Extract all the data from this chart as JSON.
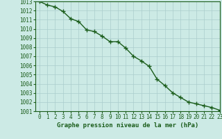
{
  "x": [
    0,
    1,
    2,
    3,
    4,
    5,
    6,
    7,
    8,
    9,
    10,
    11,
    12,
    13,
    14,
    15,
    16,
    17,
    18,
    19,
    20,
    21,
    22,
    23
  ],
  "y": [
    1013.0,
    1012.6,
    1012.4,
    1011.9,
    1011.1,
    1010.8,
    1009.9,
    1009.7,
    1009.2,
    1008.6,
    1008.6,
    1007.9,
    1007.0,
    1006.5,
    1005.9,
    1004.5,
    1003.8,
    1003.0,
    1002.5,
    1002.0,
    1001.8,
    1001.6,
    1001.4,
    1001.1
  ],
  "line_color": "#1a5c1a",
  "marker_color": "#1a5c1a",
  "bg_color": "#cceae5",
  "grid_color": "#aacccc",
  "xlabel": "Graphe pression niveau de la mer (hPa)",
  "xlim": [
    -0.5,
    23
  ],
  "ylim": [
    1001,
    1013
  ],
  "yticks": [
    1001,
    1002,
    1003,
    1004,
    1005,
    1006,
    1007,
    1008,
    1009,
    1010,
    1011,
    1012,
    1013
  ],
  "xticks": [
    0,
    1,
    2,
    3,
    4,
    5,
    6,
    7,
    8,
    9,
    10,
    11,
    12,
    13,
    14,
    15,
    16,
    17,
    18,
    19,
    20,
    21,
    22,
    23
  ],
  "xlabel_fontsize": 6.5,
  "tick_fontsize": 5.5,
  "line_width": 1.0,
  "marker_size": 4
}
